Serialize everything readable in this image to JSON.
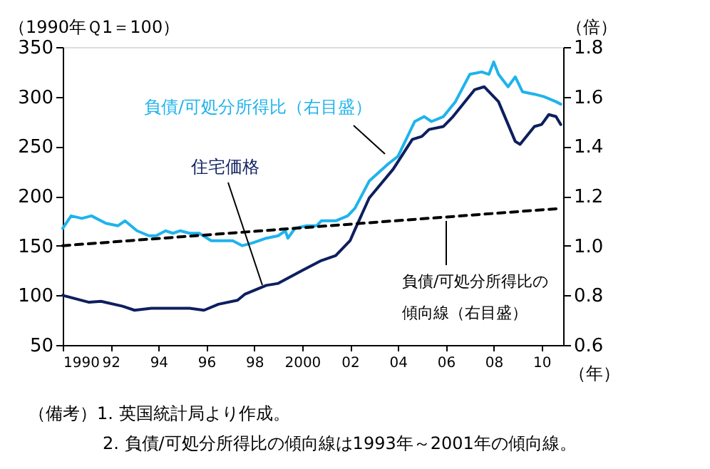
{
  "chart_data": {
    "type": "line",
    "ylabel": "（1990年Ｑ1＝100）",
    "y2label": "（倍）",
    "xlabel": "（年）",
    "xlim": [
      1990,
      2010.9
    ],
    "xticks": [
      {
        "value": 1990,
        "label": "1990"
      },
      {
        "value": 1992,
        "label": "92"
      },
      {
        "value": 1994,
        "label": "94"
      },
      {
        "value": 1996,
        "label": "96"
      },
      {
        "value": 1998,
        "label": "98"
      },
      {
        "value": 2000,
        "label": "2000"
      },
      {
        "value": 2002,
        "label": "02"
      },
      {
        "value": 2004,
        "label": "04"
      },
      {
        "value": 2006,
        "label": "06"
      },
      {
        "value": 2008,
        "label": "08"
      },
      {
        "value": 2010,
        "label": "10"
      }
    ],
    "ylim": [
      50,
      350
    ],
    "yticks": [
      50,
      100,
      150,
      200,
      250,
      300,
      350
    ],
    "y2lim": [
      0.6,
      1.8
    ],
    "y2ticks": [
      {
        "value": 0.6,
        "label": "0.6"
      },
      {
        "value": 0.8,
        "label": "0.8"
      },
      {
        "value": 1.0,
        "label": "1.0"
      },
      {
        "value": 1.2,
        "label": "1.2"
      },
      {
        "value": 1.4,
        "label": "1.4"
      },
      {
        "value": 1.6,
        "label": "1.6"
      },
      {
        "value": 1.8,
        "label": "1.8"
      }
    ],
    "grid": false,
    "marker": "none",
    "series": [
      {
        "name": "住宅価格",
        "color": "#0d1f5e",
        "line_style": "solid",
        "x": [
          1990,
          1991.1,
          1991.6,
          1992.5,
          1993,
          1993.7,
          1995.3,
          1995.9,
          1996.5,
          1997.3,
          1997.6,
          1998.5,
          1999,
          2000,
          2000.8,
          2001.4,
          2002,
          2002.2,
          2002.8,
          2003.8,
          2004.6,
          2005,
          2005.3,
          2005.9,
          2006.3,
          2007.2,
          2007.6,
          2008.2,
          2008.9,
          2009.1,
          2009.7,
          2010,
          2010.3,
          2010.6,
          2010.8
        ],
        "values": [
          100,
          93,
          94,
          89,
          85,
          87,
          87,
          85,
          91,
          95,
          101,
          110,
          112,
          125,
          135,
          140,
          155,
          166,
          198,
          227,
          257,
          260,
          267,
          270,
          280,
          307,
          310,
          295,
          255,
          252,
          270,
          272,
          282,
          280,
          272
        ]
      },
      {
        "name": "負債/可処分所得比（右目盛）",
        "color": "#1fb3ec",
        "line_style": "solid",
        "axis": "y2",
        "x": [
          1990,
          1990.35,
          1990.8,
          1991.2,
          1991.8,
          1992.3,
          1992.6,
          1993.1,
          1993.6,
          1993.9,
          1994.3,
          1994.6,
          1994.9,
          1995.3,
          1995.7,
          1996.2,
          1996.7,
          1997.1,
          1997.5,
          1997.9,
          1998.5,
          1999,
          1999.3,
          1999.4,
          1999.7,
          2000.2,
          2000.6,
          2000.8,
          2001.4,
          2001.9,
          2002.2,
          2002.8,
          2003.6,
          2004,
          2004.7,
          2005.1,
          2005.4,
          2005.9,
          2006.4,
          2007,
          2007.5,
          2007.8,
          2008,
          2008.2,
          2008.6,
          2008.9,
          2009.2,
          2009.7,
          2010.1,
          2010.6,
          2010.8
        ],
        "values": [
          1.07,
          1.12,
          1.11,
          1.12,
          1.09,
          1.08,
          1.1,
          1.06,
          1.04,
          1.04,
          1.06,
          1.05,
          1.06,
          1.05,
          1.05,
          1.02,
          1.02,
          1.02,
          1.0,
          1.01,
          1.03,
          1.04,
          1.06,
          1.03,
          1.07,
          1.08,
          1.08,
          1.1,
          1.1,
          1.12,
          1.15,
          1.26,
          1.33,
          1.36,
          1.5,
          1.52,
          1.5,
          1.52,
          1.58,
          1.69,
          1.7,
          1.69,
          1.74,
          1.69,
          1.64,
          1.68,
          1.62,
          1.61,
          1.6,
          1.58,
          1.57
        ]
      },
      {
        "name": "負債/可処分所得比の傾向線（右目盛）",
        "color": "#000000",
        "line_style": "dashed",
        "axis": "y2",
        "x": [
          1990,
          2010.8
        ],
        "values": [
          1.0,
          1.15
        ]
      }
    ],
    "annotations": [
      "（備考）1. 英国統計局より作成。",
      "2. 負債/可処分所得比の傾向線は1993年～2001年の傾向線。"
    ]
  }
}
